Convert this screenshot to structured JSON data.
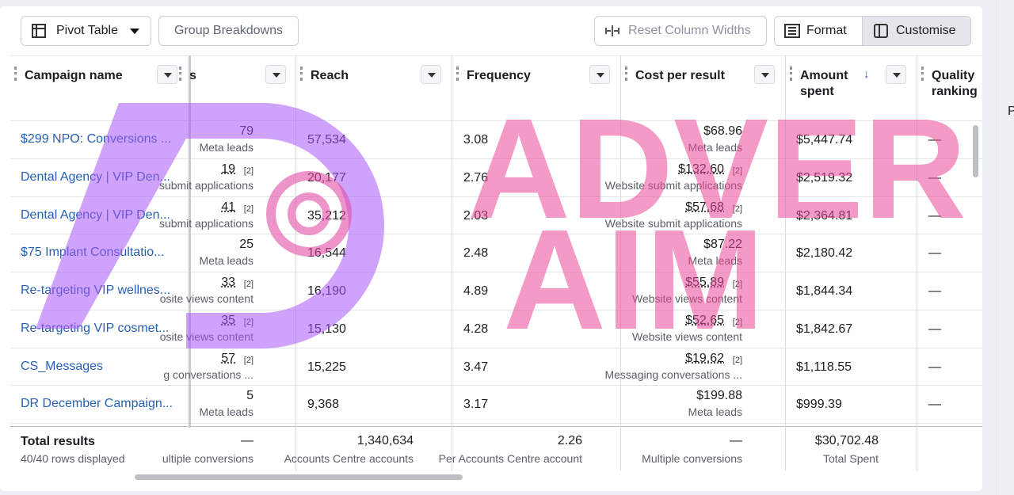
{
  "toolbar": {
    "pivot_table": "Pivot Table",
    "group_breakdowns": "Group Breakdowns",
    "reset_column_widths": "Reset Column Widths",
    "format": "Format",
    "customise": "Customise"
  },
  "table": {
    "columns": {
      "campaign": "Campaign name",
      "results": "s",
      "reach": "Reach",
      "frequency": "Frequency",
      "cost": "Cost per result",
      "amount": "Amount spent",
      "quality": "Quality ranking"
    },
    "rows": [
      {
        "campaign": "$299 NPO: Conversions ...",
        "results": "79",
        "results_sub": "Meta leads",
        "reach": "57,534",
        "frequency": "3.08",
        "cost": "$68.96",
        "cost_sub": "Meta leads",
        "amount": "$5,447.74",
        "quality": "—"
      },
      {
        "campaign": "Dental Agency | VIP Den...",
        "results": "19",
        "results_note": "[2]",
        "results_sub": "submit applications",
        "reach": "20,177",
        "frequency": "2.76",
        "cost": "$132.60",
        "cost_note": "[2]",
        "cost_sub": "Website submit applications",
        "amount": "$2,519.32",
        "quality": "—"
      },
      {
        "campaign": "Dental Agency | VIP Den...",
        "results": "41",
        "results_note": "[2]",
        "results_sub": "submit applications",
        "reach": "35,212",
        "frequency": "2.03",
        "cost": "$57.68",
        "cost_note": "[2]",
        "cost_sub": "Website submit applications",
        "amount": "$2,364.81",
        "quality": "—"
      },
      {
        "campaign": "$75 Implant Consultatio...",
        "results": "25",
        "results_sub": "Meta leads",
        "reach": "16,544",
        "frequency": "2.48",
        "cost": "$87.22",
        "cost_sub": "Meta leads",
        "amount": "$2,180.42",
        "quality": "—"
      },
      {
        "campaign": "Re-targeting VIP wellnes...",
        "results": "33",
        "results_note": "[2]",
        "results_sub": "osite views content",
        "reach": "16,190",
        "frequency": "4.89",
        "cost": "$55.89",
        "cost_note": "[2]",
        "cost_sub": "Website views content",
        "amount": "$1,844.34",
        "quality": "—"
      },
      {
        "campaign": "Re-targeting VIP cosmet...",
        "results": "35",
        "results_note": "[2]",
        "results_sub": "osite views content",
        "reach": "15,130",
        "frequency": "4.28",
        "cost": "$52.65",
        "cost_note": "[2]",
        "cost_sub": "Website views content",
        "amount": "$1,842.67",
        "quality": "—"
      },
      {
        "campaign": "CS_Messages",
        "results": "57",
        "results_note": "[2]",
        "results_sub": "g conversations ...",
        "reach": "15,225",
        "frequency": "3.47",
        "cost": "$19.62",
        "cost_note": "[2]",
        "cost_sub": "Messaging conversations ...",
        "amount": "$1,118.55",
        "quality": "—"
      },
      {
        "campaign": "DR December Campaign...",
        "results": "5",
        "results_sub": "Meta leads",
        "reach": "9,368",
        "frequency": "3.17",
        "cost": "$199.88",
        "cost_sub": "Meta leads",
        "amount": "$999.39",
        "quality": "—"
      }
    ],
    "totals": {
      "title": "Total results",
      "rows_displayed": "40/40 rows displayed",
      "results": "—",
      "results_sub": "ultiple conversions",
      "reach": "1,340,634",
      "reach_sub": "Accounts Centre accounts",
      "frequency": "2.26",
      "frequency_sub": "Per Accounts Centre account",
      "cost": "—",
      "cost_sub": "Multiple conversions",
      "amount": "$30,702.48",
      "amount_sub": "Total Spent"
    }
  },
  "side_panel": {
    "label": "P"
  },
  "watermark": {
    "line1": "ADVER",
    "line2": "AIM"
  }
}
